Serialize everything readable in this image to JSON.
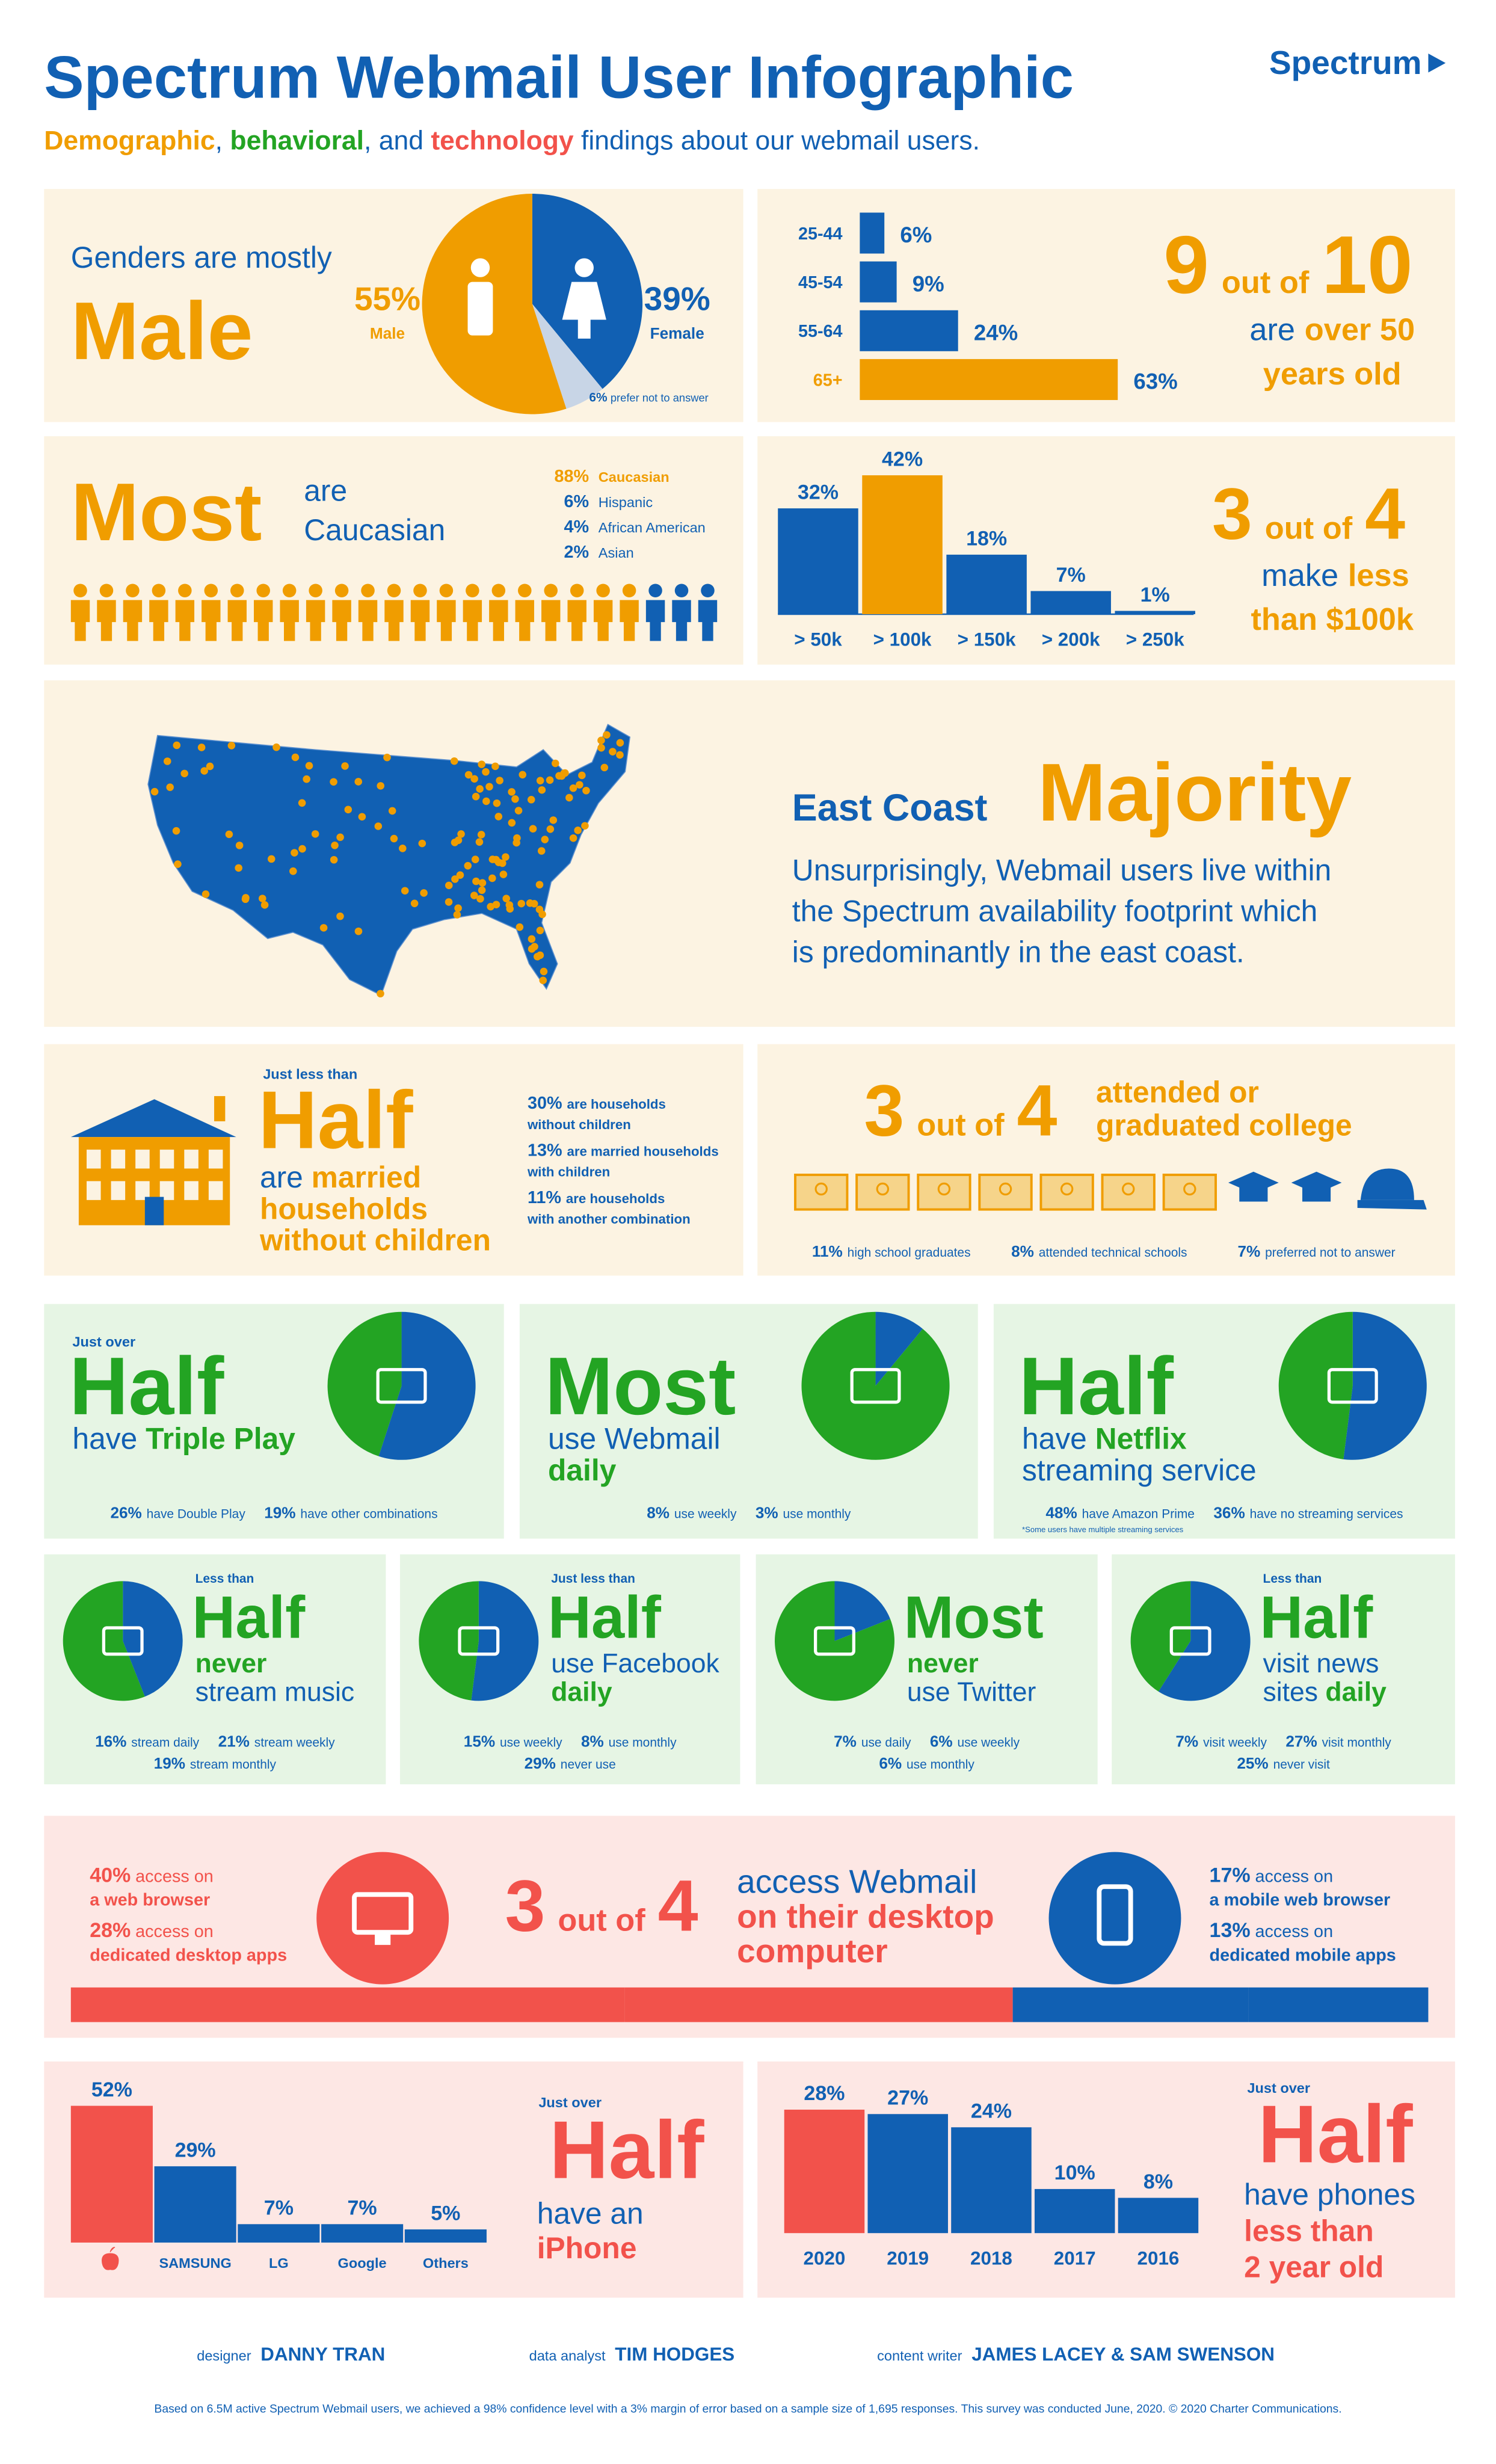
{
  "header": {
    "title": "Spectrum Webmail User Infographic",
    "subtitle": [
      "Demographic",
      ", ",
      "behavioral",
      ", and ",
      "technology",
      " findings about our webmail users."
    ],
    "logo": "Spectrum"
  },
  "gender": {
    "heading": "Genders are mostly",
    "headline": "Male",
    "pie": {
      "type": "pie",
      "slices": [
        {
          "name": "Female",
          "value": 39,
          "label": "39%",
          "color": "#1160b3"
        },
        {
          "name": "prefer not to answer",
          "value": 6,
          "label": "6%",
          "color": "#c8d5e6"
        },
        {
          "name": "Male",
          "value": 55,
          "label": "55%",
          "color": "#f09d00"
        }
      ]
    }
  },
  "age": {
    "type": "bar",
    "orientation": "horizontal",
    "categories": [
      "25-44",
      "45-54",
      "55-64",
      "65+"
    ],
    "values": [
      6,
      9,
      24,
      63
    ],
    "value_labels": [
      "6%",
      "9%",
      "24%",
      "63%"
    ],
    "colors": [
      "#1160b3",
      "#1160b3",
      "#1160b3",
      "#f09d00"
    ],
    "headline": [
      "9",
      "out of",
      "10",
      "are",
      "over 50",
      "years old"
    ]
  },
  "ethnicity": {
    "headline": "Most",
    "text": [
      "are",
      "Caucasian"
    ],
    "groups": [
      {
        "name": "Caucasian",
        "value": 88,
        "label": "88%",
        "color": "#f09d00"
      },
      {
        "name": "Hispanic",
        "value": 6,
        "label": "6%",
        "color": "#1160b3"
      },
      {
        "name": "African American",
        "value": 4,
        "label": "4%",
        "color": "#1160b3"
      },
      {
        "name": "Asian",
        "value": 2,
        "label": "2%",
        "color": "#1160b3"
      }
    ]
  },
  "income": {
    "type": "bar",
    "categories": [
      "> 50k",
      "> 100k",
      "> 150k",
      "> 200k",
      "> 250k"
    ],
    "values": [
      32,
      42,
      18,
      7,
      1
    ],
    "value_labels": [
      "32%",
      "42%",
      "18%",
      "7%",
      "1%"
    ],
    "colors": [
      "#1160b3",
      "#f09d00",
      "#1160b3",
      "#1160b3",
      "#1160b3"
    ],
    "headline": [
      "3",
      "out of",
      "4",
      "make",
      "less",
      "than $100k"
    ]
  },
  "region": {
    "headline": [
      "East Coast",
      "Majority"
    ],
    "text": [
      "Unsurprisingly, Webmail users live within",
      "the Spectrum availability footprint which",
      "is predominantly in the east coast."
    ]
  },
  "household": {
    "qualifier": "Just less than",
    "headline": "Half",
    "lines": [
      [
        {
          "text": "are "
        },
        {
          "text": "married",
          "strong": true
        }
      ],
      [
        {
          "text": "households",
          "strong": true
        }
      ],
      [
        {
          "text": "without children",
          "strong": true
        }
      ]
    ],
    "stats": [
      {
        "value": 30,
        "label": "30%",
        "text": [
          "are households",
          "without children"
        ]
      },
      {
        "value": 13,
        "label": "13%",
        "text": [
          "are married households",
          "with children"
        ]
      },
      {
        "value": 11,
        "label": "11%",
        "text": [
          "are households",
          "with another combination"
        ]
      }
    ]
  },
  "education": {
    "headline": [
      "3",
      "out of",
      "4"
    ],
    "text": [
      "attended or",
      "graduated college"
    ],
    "stats": [
      {
        "value": 11,
        "label": "11%",
        "text": "high school graduates"
      },
      {
        "value": 8,
        "label": "8%",
        "text": "attended technical schools"
      },
      {
        "value": 7,
        "label": "7%",
        "text": "preferred not to answer"
      }
    ]
  },
  "services": [
    {
      "qualifier": "Just over",
      "headline": "Half",
      "lines": [
        [
          {
            "text": "have "
          },
          {
            "text": "Triple Play",
            "strong": true
          }
        ]
      ],
      "pie": {
        "values": [
          55,
          45
        ],
        "colors": [
          "#1160b3",
          "#23a423"
        ]
      },
      "stats": [
        {
          "value": 26,
          "label": "26%",
          "text": "have Double Play"
        },
        {
          "value": 19,
          "label": "19%",
          "text": "have other combinations"
        }
      ]
    },
    {
      "headline": "Most",
      "lines": [
        [
          {
            "text": "use Webmail"
          }
        ],
        [
          {
            "text": "daily",
            "strong": true
          }
        ]
      ],
      "pie": {
        "values": [
          11,
          89
        ],
        "colors": [
          "#1160b3",
          "#23a423"
        ]
      },
      "stats": [
        {
          "value": 8,
          "label": "8%",
          "text": "use weekly"
        },
        {
          "value": 3,
          "label": "3%",
          "text": "use monthly"
        }
      ]
    },
    {
      "headline": "Half",
      "lines": [
        [
          {
            "text": "have "
          },
          {
            "text": "Netflix",
            "strong": true
          }
        ],
        [
          {
            "text": "streaming service"
          }
        ]
      ],
      "pie": {
        "values": [
          52,
          48
        ],
        "colors": [
          "#1160b3",
          "#23a423"
        ]
      },
      "stats": [
        {
          "value": 48,
          "label": "48%",
          "text": "have Amazon Prime"
        },
        {
          "value": 36,
          "label": "36%",
          "text": "have no streaming services"
        }
      ],
      "note": "*Some users have multiple streaming services"
    },
    {
      "qualifier": "Less than",
      "headline": "Half",
      "lines": [
        [
          {
            "text": "never",
            "strong": true
          }
        ],
        [
          {
            "text": "stream music"
          }
        ]
      ],
      "pie": {
        "values": [
          44,
          56
        ],
        "colors": [
          "#1160b3",
          "#23a423"
        ]
      },
      "stats": [
        {
          "value": 16,
          "label": "16%",
          "text": "stream daily"
        },
        {
          "value": 21,
          "label": "21%",
          "text": "stream weekly"
        },
        {
          "value": 19,
          "label": "19%",
          "text": "stream monthly"
        }
      ]
    },
    {
      "qualifier": "Just less than",
      "headline": "Half",
      "lines": [
        [
          {
            "text": "use Facebook"
          }
        ],
        [
          {
            "text": "daily",
            "strong": true
          }
        ]
      ],
      "pie": {
        "values": [
          52,
          48
        ],
        "colors": [
          "#1160b3",
          "#23a423"
        ]
      },
      "stats": [
        {
          "value": 15,
          "label": "15%",
          "text": "use weekly"
        },
        {
          "value": 8,
          "label": "8%",
          "text": "use monthly"
        },
        {
          "value": 29,
          "label": "29%",
          "text": "never use"
        }
      ]
    },
    {
      "headline": "Most",
      "lines": [
        [
          {
            "text": "never",
            "strong": true
          }
        ],
        [
          {
            "text": "use Twitter"
          }
        ]
      ],
      "pie": {
        "values": [
          19,
          81
        ],
        "colors": [
          "#1160b3",
          "#23a423"
        ]
      },
      "stats": [
        {
          "value": 7,
          "label": "7%",
          "text": "use daily"
        },
        {
          "value": 6,
          "label": "6%",
          "text": "use weekly"
        },
        {
          "value": 6,
          "label": "6%",
          "text": "use monthly"
        }
      ]
    },
    {
      "qualifier": "Less than",
      "headline": "Half",
      "lines": [
        [
          {
            "text": "visit news"
          }
        ],
        [
          {
            "text": "sites "
          },
          {
            "text": "daily",
            "strong": true
          }
        ]
      ],
      "pie": {
        "values": [
          59,
          41
        ],
        "colors": [
          "#1160b3",
          "#23a423"
        ]
      },
      "stats": [
        {
          "value": 7,
          "label": "7%",
          "text": "visit weekly"
        },
        {
          "value": 27,
          "label": "27%",
          "text": "visit monthly"
        },
        {
          "value": 25,
          "label": "25%",
          "text": "never visit"
        }
      ]
    }
  ],
  "access": {
    "headline": [
      "3",
      "out of",
      "4"
    ],
    "lines": [
      [
        {
          "text": "access Webmail"
        }
      ],
      [
        {
          "text": "on their desktop",
          "strong": true
        }
      ],
      [
        {
          "text": "computer",
          "strong": true
        }
      ]
    ],
    "desktop": {
      "color": "#f2524b",
      "stats": [
        {
          "value": 40,
          "label": "40%",
          "text": [
            "access on",
            "a web browser"
          ]
        },
        {
          "value": 28,
          "label": "28%",
          "text": [
            "access on",
            "dedicated desktop apps"
          ]
        }
      ]
    },
    "mobile": {
      "color": "#1160b3",
      "stats": [
        {
          "value": 17,
          "label": "17%",
          "text": [
            "access on",
            "a mobile web browser"
          ]
        },
        {
          "value": 13,
          "label": "13%",
          "text": [
            "access on",
            "dedicated mobile apps"
          ]
        }
      ]
    }
  },
  "phones": {
    "type": "bar",
    "categories": [
      null,
      "SAMSUNG",
      "LG",
      "Google",
      "Others"
    ],
    "values": [
      52,
      29,
      7,
      7,
      5
    ],
    "value_labels": [
      "52%",
      "29%",
      "7%",
      "7%",
      "5%"
    ],
    "colors": [
      "#f2524b",
      "#1160b3",
      "#1160b3",
      "#1160b3",
      "#1160b3"
    ],
    "qualifier": "Just over",
    "headline": "Half",
    "lines": [
      [
        {
          "text": "have an"
        }
      ],
      [
        {
          "text": "iPhone",
          "strong": true
        }
      ]
    ]
  },
  "phone_age": {
    "type": "bar",
    "categories": [
      "2020",
      "2019",
      "2018",
      "2017",
      "2016"
    ],
    "values": [
      28,
      27,
      24,
      10,
      8
    ],
    "value_labels": [
      "28%",
      "27%",
      "24%",
      "10%",
      "8%"
    ],
    "colors": [
      "#f2524b",
      "#1160b3",
      "#1160b3",
      "#1160b3",
      "#1160b3"
    ],
    "qualifier": "Just over",
    "headline": "Half",
    "lines": [
      [
        {
          "text": "have phones"
        }
      ],
      [
        {
          "text": "less than",
          "strong": true
        }
      ],
      [
        {
          "text": "2 year old",
          "strong": true
        }
      ]
    ]
  },
  "credits": [
    {
      "role": "designer",
      "name": "DANNY TRAN"
    },
    {
      "role": "data analyst",
      "name": "TIM HODGES"
    },
    {
      "role": "content writer",
      "name": "JAMES LACEY & SAM SWENSON"
    }
  ],
  "footnote": "Based on 6.5M active Spectrum Webmail users, we achieved a 98% confidence level with a 3% margin of error based on a sample size of 1,695 responses. This survey was conducted June, 2020. © 2020 Charter Communications."
}
